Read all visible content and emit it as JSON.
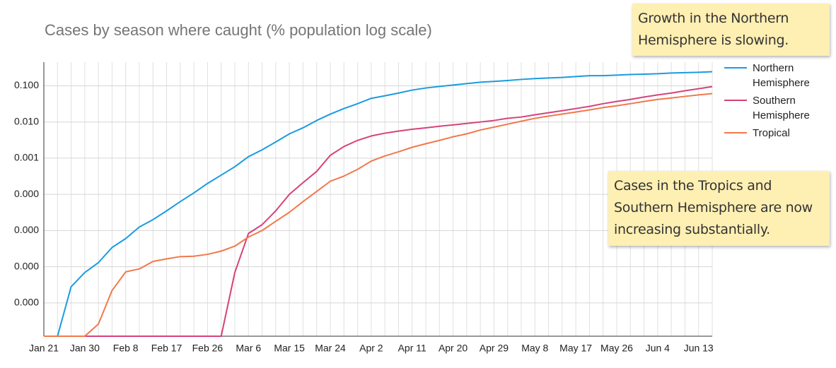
{
  "chart_data": {
    "type": "line",
    "title": "Cases by season where caught (% population log scale)",
    "log_scale": true,
    "grid": true,
    "legend": "right",
    "categories": [
      "Jan 21",
      null,
      null,
      "Jan 30",
      null,
      null,
      "Feb 8",
      null,
      null,
      "Feb 17",
      null,
      null,
      "Feb 26",
      null,
      null,
      "Mar 6",
      null,
      null,
      "Mar 15",
      null,
      null,
      "Mar 24",
      null,
      null,
      "Apr 2",
      null,
      null,
      "Apr 11",
      null,
      null,
      "Apr 20",
      null,
      null,
      "Apr 29",
      null,
      null,
      "May 8",
      null,
      null,
      "May 17",
      null,
      null,
      "May 26",
      null,
      null,
      "Jun 4",
      null,
      null,
      "Jun 13",
      null
    ],
    "ylim": [
      1.2e-08,
      0.45
    ],
    "yticks": [
      {
        "value": 0.1,
        "label": "0.100"
      },
      {
        "value": 0.01,
        "label": "0.010"
      },
      {
        "value": 0.001,
        "label": "0.001"
      },
      {
        "value": 0.0001,
        "label": "0.000"
      },
      {
        "value": 1e-05,
        "label": "0.000"
      },
      {
        "value": 1e-06,
        "label": "0.000"
      },
      {
        "value": 1e-07,
        "label": "0.000"
      }
    ],
    "series": [
      {
        "name": "Northern Hemisphere",
        "color": "#1a9be0",
        "values": [
          0,
          0,
          2.8e-07,
          6.9e-07,
          1.3e-06,
          3.4e-06,
          6e-06,
          1.25e-05,
          2e-05,
          3.5e-05,
          6.3e-05,
          0.00011,
          0.0002,
          0.00034,
          0.00058,
          0.0011,
          0.0017,
          0.0028,
          0.0047,
          0.0069,
          0.011,
          0.0165,
          0.0235,
          0.032,
          0.045,
          0.053,
          0.063,
          0.076,
          0.087,
          0.096,
          0.105,
          0.115,
          0.126,
          0.132,
          0.14,
          0.15,
          0.158,
          0.165,
          0.17,
          0.18,
          0.19,
          0.19,
          0.197,
          0.205,
          0.21,
          0.215,
          0.225,
          0.23,
          0.236,
          0.245
        ]
      },
      {
        "name": "Southern Hemisphere",
        "color": "#d6427a",
        "values": [
          0,
          0,
          0,
          0,
          0,
          0,
          0,
          0,
          0,
          0,
          0,
          0,
          0,
          0,
          6.9e-07,
          8.3e-06,
          1.45e-05,
          3.5e-05,
          0.0001,
          0.00021,
          0.00043,
          0.0012,
          0.0021,
          0.0031,
          0.0041,
          0.0049,
          0.0056,
          0.0063,
          0.0069,
          0.0076,
          0.0083,
          0.0091,
          0.01,
          0.011,
          0.0126,
          0.0137,
          0.0158,
          0.018,
          0.0205,
          0.0235,
          0.027,
          0.032,
          0.037,
          0.042,
          0.049,
          0.056,
          0.063,
          0.073,
          0.083,
          0.095
        ]
      },
      {
        "name": "Tropical",
        "color": "#f2784b",
        "values": [
          0,
          0,
          0,
          0,
          2.6e-08,
          2.2e-07,
          7.2e-07,
          8.7e-07,
          1.4e-06,
          1.65e-06,
          1.9e-06,
          1.95e-06,
          2.2e-06,
          2.7e-06,
          3.7e-06,
          6.6e-06,
          1e-05,
          1.8e-05,
          3.2e-05,
          6.3e-05,
          0.00012,
          0.00023,
          0.00032,
          0.00049,
          0.00083,
          0.00115,
          0.0015,
          0.002,
          0.0025,
          0.0031,
          0.0039,
          0.0047,
          0.006,
          0.0072,
          0.0087,
          0.0105,
          0.0126,
          0.0145,
          0.0165,
          0.0188,
          0.0215,
          0.025,
          0.028,
          0.032,
          0.037,
          0.042,
          0.046,
          0.051,
          0.056,
          0.061
        ]
      }
    ],
    "annotations": [
      "Growth in the Northern Hemisphere is slowing.",
      "Cases in the Tropics and Southern Hemisphere are now increasing substantially."
    ]
  }
}
